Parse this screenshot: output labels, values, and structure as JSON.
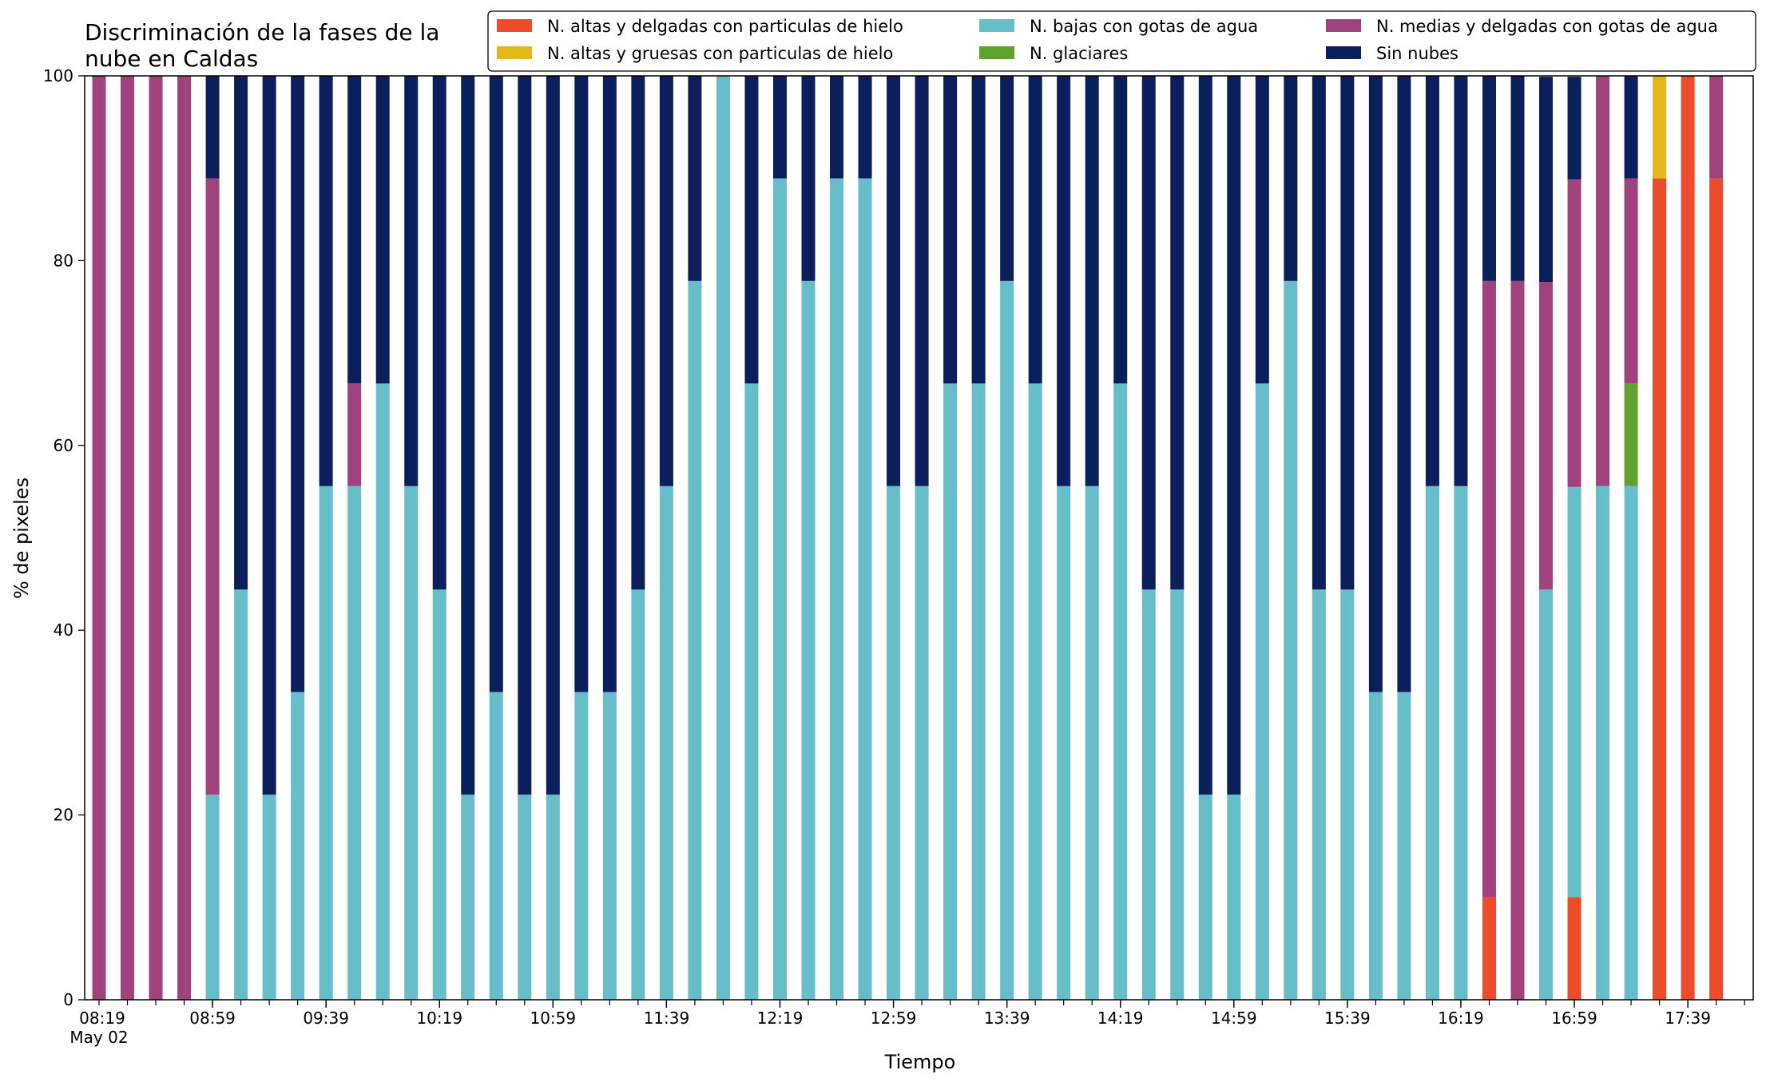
{
  "chart_data": {
    "type": "bar",
    "stacked": true,
    "title": [
      "Discriminación de la fases de la",
      "nube en Caldas"
    ],
    "xlabel": "Tiempo",
    "ylabel": "% de pixeles",
    "ylim": [
      0,
      100
    ],
    "yticks": [
      0,
      20,
      40,
      60,
      80,
      100
    ],
    "x_first_label": "08:19",
    "x_first_sublabel": "May 02",
    "x_tick_labels": [
      "08:59",
      "09:39",
      "10:19",
      "10:59",
      "11:39",
      "12:19",
      "12:59",
      "13:39",
      "14:19",
      "14:59",
      "15:39",
      "16:19",
      "16:59",
      "17:39"
    ],
    "categories": [
      "08:19",
      "08:29",
      "08:39",
      "08:49",
      "08:59",
      "09:09",
      "09:19",
      "09:29",
      "09:39",
      "09:49",
      "09:59",
      "10:09",
      "10:19",
      "10:29",
      "10:39",
      "10:49",
      "10:59",
      "11:09",
      "11:19",
      "11:29",
      "11:39",
      "11:49",
      "11:59",
      "12:09",
      "12:19",
      "12:29",
      "12:39",
      "12:49",
      "12:59",
      "13:09",
      "13:19",
      "13:29",
      "13:39",
      "13:49",
      "13:59",
      "14:09",
      "14:19",
      "14:29",
      "14:39",
      "14:49",
      "14:59",
      "15:09",
      "15:19",
      "15:29",
      "15:39",
      "15:49",
      "15:59",
      "16:09",
      "16:19",
      "16:29",
      "16:39",
      "16:49",
      "16:59",
      "17:09",
      "17:19",
      "17:29",
      "17:39",
      "17:49"
    ],
    "legend_position": "top-right",
    "legend_columns": 3,
    "series": [
      {
        "name": "N. altas y delgadas con particulas de hielo",
        "color": "#EE4B2B",
        "values": [
          0,
          0,
          0,
          0,
          0,
          0,
          0,
          0,
          0,
          0,
          0,
          0,
          0,
          0,
          0,
          0,
          0,
          0,
          0,
          0,
          0,
          0,
          0,
          0,
          0,
          0,
          0,
          0,
          0,
          0,
          0,
          0,
          0,
          0,
          0,
          0,
          0,
          0,
          0,
          0,
          0,
          0,
          0,
          0,
          0,
          0,
          0,
          0,
          0,
          11.1,
          0,
          0,
          11.1,
          0,
          0,
          88.9,
          100,
          88.9
        ]
      },
      {
        "name": "N. altas y gruesas con particulas de hielo",
        "color": "#E3B81A",
        "values": [
          0,
          0,
          0,
          0,
          0,
          0,
          0,
          0,
          0,
          0,
          0,
          0,
          0,
          0,
          0,
          0,
          0,
          0,
          0,
          0,
          0,
          0,
          0,
          0,
          0,
          0,
          0,
          0,
          0,
          0,
          0,
          0,
          0,
          0,
          0,
          0,
          0,
          0,
          0,
          0,
          0,
          0,
          0,
          0,
          0,
          0,
          0,
          0,
          0,
          0,
          0,
          0,
          0,
          0,
          0,
          11.1,
          0,
          0
        ]
      },
      {
        "name": "N. bajas con gotas de agua",
        "color": "#66BECA",
        "values": [
          0,
          0,
          0,
          0,
          22.2,
          44.4,
          22.2,
          33.3,
          55.6,
          55.6,
          66.7,
          55.6,
          44.4,
          22.2,
          33.3,
          22.2,
          22.2,
          33.3,
          33.3,
          44.4,
          55.6,
          77.8,
          100,
          66.7,
          88.9,
          77.8,
          88.9,
          88.9,
          55.6,
          55.6,
          66.7,
          66.7,
          77.8,
          66.7,
          55.6,
          55.6,
          66.7,
          44.4,
          44.4,
          22.2,
          22.2,
          66.7,
          77.8,
          44.4,
          44.4,
          33.3,
          33.3,
          55.6,
          55.6,
          0,
          0,
          44.4,
          44.4,
          55.6,
          55.6,
          0,
          0,
          0
        ]
      },
      {
        "name": "N. glaciares",
        "color": "#5FA22E",
        "values": [
          0,
          0,
          0,
          0,
          0,
          0,
          0,
          0,
          0,
          0,
          0,
          0,
          0,
          0,
          0,
          0,
          0,
          0,
          0,
          0,
          0,
          0,
          0,
          0,
          0,
          0,
          0,
          0,
          0,
          0,
          0,
          0,
          0,
          0,
          0,
          0,
          0,
          0,
          0,
          0,
          0,
          0,
          0,
          0,
          0,
          0,
          0,
          0,
          0,
          0,
          0,
          0,
          0,
          0,
          11.1,
          0,
          0,
          0
        ]
      },
      {
        "name": "N. medias y delgadas con gotas de agua",
        "color": "#A0437D",
        "values": [
          100,
          100,
          100,
          100,
          66.7,
          0,
          0,
          0,
          0,
          11.1,
          0,
          0,
          0,
          0,
          0,
          0,
          0,
          0,
          0,
          0,
          0,
          0,
          0,
          0,
          0,
          0,
          0,
          0,
          0,
          0,
          0,
          0,
          0,
          0,
          0,
          0,
          0,
          0,
          0,
          0,
          0,
          0,
          0,
          0,
          0,
          0,
          0,
          0,
          0,
          66.7,
          77.8,
          33.3,
          33.3,
          44.4,
          22.2,
          0,
          0,
          11.1
        ]
      },
      {
        "name": "Sin nubes",
        "color": "#0A1F5C",
        "values": [
          0,
          0,
          0,
          0,
          11.1,
          55.6,
          77.8,
          66.7,
          44.4,
          33.3,
          33.3,
          44.4,
          55.6,
          77.8,
          66.7,
          77.8,
          77.8,
          66.7,
          66.7,
          55.6,
          44.4,
          22.2,
          0,
          33.3,
          11.1,
          22.2,
          11.1,
          11.1,
          44.4,
          44.4,
          33.3,
          33.3,
          22.2,
          33.3,
          44.4,
          44.4,
          33.3,
          55.6,
          55.6,
          77.8,
          77.8,
          33.3,
          22.2,
          55.6,
          55.6,
          66.7,
          66.7,
          44.4,
          44.4,
          22.2,
          22.2,
          22.2,
          11.1,
          0,
          11.1,
          0,
          0,
          0
        ]
      }
    ]
  }
}
